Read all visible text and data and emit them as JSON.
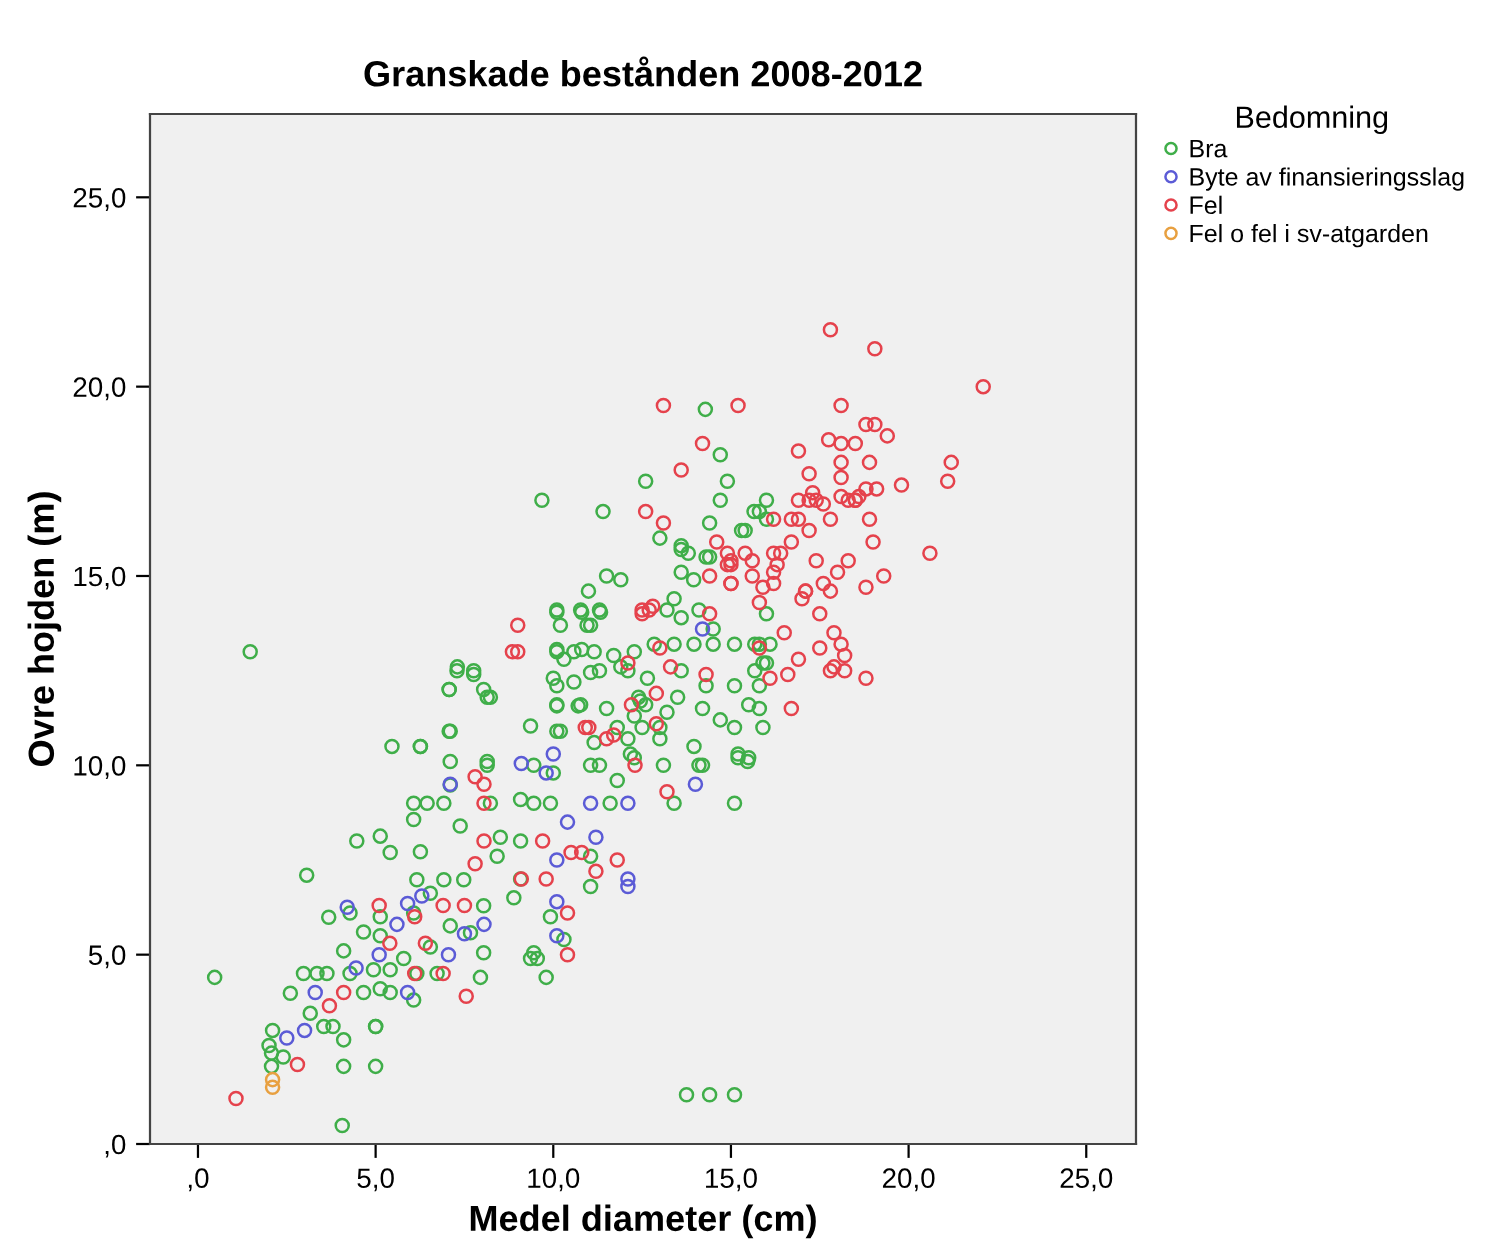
{
  "chart_data": {
    "type": "scatter",
    "title": "Granskade bestånden 2008-2012",
    "xlabel": "Medel diameter (cm)",
    "ylabel": "Ovre hojden (m)",
    "legend_title": "Bedomning",
    "legend": "right",
    "grid": false,
    "marker": "circle",
    "xlim": [
      -1.35,
      26.4
    ],
    "ylim": [
      0,
      27.2
    ],
    "xticks": [
      {
        "value": 0,
        "label": ",0"
      },
      {
        "value": 5,
        "label": "5,0"
      },
      {
        "value": 10,
        "label": "10,0"
      },
      {
        "value": 15,
        "label": "15,0"
      },
      {
        "value": 20,
        "label": "20,0"
      },
      {
        "value": 25,
        "label": "25,0"
      }
    ],
    "yticks": [
      {
        "value": 0,
        "label": ",0"
      },
      {
        "value": 5,
        "label": "5,0"
      },
      {
        "value": 10,
        "label": "10,0"
      },
      {
        "value": 15,
        "label": "15,0"
      },
      {
        "value": 20,
        "label": "20,0"
      },
      {
        "value": 25,
        "label": "25,0"
      }
    ],
    "series": [
      {
        "name": "Bra",
        "color": "#3fae49",
        "x": [
          1.47,
          0.47,
          4.06,
          2.07,
          2.07,
          2.1,
          2.0,
          2.4,
          2.6,
          2.97,
          3.35,
          3.63,
          3.16,
          3.54,
          3.8,
          4.1,
          4.1,
          5.0,
          5.0,
          3.06,
          3.68,
          4.28,
          4.66,
          4.94,
          4.1,
          4.28,
          4.66,
          5.41,
          5.79,
          6.16,
          6.54,
          4.47,
          5.13,
          5.41,
          6.26,
          6.07,
          6.07,
          6.45,
          6.92,
          7.1,
          7.1,
          7.38,
          5.46,
          6.26,
          7.07,
          7.07,
          7.29,
          7.76,
          8.04,
          8.23,
          8.14,
          8.23,
          8.51,
          8.42,
          9.08,
          9.45,
          9.92,
          9.08,
          9.08,
          8.89,
          6.92,
          7.48,
          7.1,
          7.67,
          8.04,
          6.16,
          6.54,
          6.07,
          6.73,
          6.07,
          5.13,
          5.13,
          5.13,
          5.0,
          5.41,
          7.95,
          8.04,
          9.45,
          9.36,
          9.8,
          9.36,
          10.1,
          10.1,
          10.1,
          10.3,
          10.1,
          10.8,
          11.05,
          10.7,
          11.05,
          10.1,
          10.8,
          11.33,
          11.05,
          11.8,
          11.6,
          12.17,
          11.8,
          12.45,
          11.05,
          11.05,
          9.92,
          10.3,
          9.55,
          13.75,
          14.4,
          15.1,
          14.28,
          14.7,
          12.6,
          14.9,
          14.7,
          9.68,
          11.4,
          16.0,
          15.65,
          15.3,
          14.4,
          13.6,
          13.0,
          13.8,
          14.3,
          13.6,
          13.95,
          13.4,
          11.5,
          11.9,
          10.99,
          10.1,
          10.2,
          10.77,
          11.3,
          10.95,
          10.1,
          10.58,
          11.15,
          11.7,
          12.28,
          12.84,
          13.4,
          13.96,
          14.5,
          15.1,
          15.67,
          16.1,
          10.0,
          10.58,
          11.3,
          12.1,
          12.65,
          13.6,
          14.3,
          15.1,
          15.67,
          16.0,
          10.1,
          10.77,
          11.5,
          12.28,
          13.2,
          14.2,
          14.7,
          15.5,
          15.9,
          10.2,
          11.15,
          12.1,
          13.0,
          13.96,
          15.1,
          15.2,
          15.47,
          6.26,
          7.1,
          8.14,
          7.3,
          7.76,
          7.07,
          9.45,
          10.0,
          11.3,
          12.28,
          14.2,
          8.14,
          12.6,
          13.5,
          13.2,
          13.6,
          14.1,
          14.5,
          11.9,
          12.4,
          13.0,
          13.6,
          14.4,
          15.4,
          15.8,
          16.0,
          16.0,
          15.8,
          15.9,
          15.8,
          15.8,
          15.2,
          15.5,
          15.1,
          14.1,
          13.4,
          13.1,
          12.5
        ],
        "values": [
          13.0,
          4.4,
          0.49,
          2.05,
          2.4,
          3.0,
          2.6,
          2.3,
          3.98,
          4.5,
          4.5,
          4.5,
          3.45,
          3.1,
          3.1,
          2.05,
          2.75,
          2.05,
          3.1,
          7.1,
          5.99,
          6.1,
          5.6,
          4.6,
          5.1,
          4.5,
          4.0,
          4.6,
          4.9,
          4.5,
          5.2,
          8.0,
          8.13,
          7.7,
          7.72,
          9.0,
          8.57,
          9.0,
          9.0,
          9.48,
          10.1,
          8.4,
          10.5,
          10.5,
          10.9,
          12.0,
          12.5,
          12.4,
          12.0,
          11.8,
          10.1,
          9.0,
          8.1,
          7.6,
          9.1,
          9.0,
          9.0,
          8.0,
          7.0,
          6.5,
          6.98,
          6.98,
          5.76,
          5.58,
          6.29,
          6.98,
          6.62,
          6.1,
          4.5,
          3.8,
          6.0,
          5.5,
          4.1,
          3.1,
          4.0,
          4.4,
          5.05,
          5.05,
          4.9,
          4.4,
          11.04,
          10.9,
          11.57,
          12.1,
          12.8,
          13.06,
          13.06,
          12.45,
          11.57,
          13.7,
          14.04,
          14.04,
          14.04,
          10.0,
          9.6,
          9.0,
          10.3,
          11.0,
          11.7,
          7.6,
          6.8,
          6.0,
          5.4,
          4.9,
          1.3,
          1.3,
          1.3,
          19.4,
          18.2,
          17.5,
          17.5,
          17.0,
          17.0,
          16.7,
          17.0,
          16.7,
          16.2,
          16.4,
          15.8,
          16.0,
          15.6,
          15.5,
          15.1,
          14.9,
          14.4,
          15.0,
          14.9,
          14.6,
          14.1,
          13.7,
          14.1,
          14.1,
          13.7,
          13.0,
          13.0,
          13.0,
          12.9,
          13.0,
          13.2,
          13.2,
          13.2,
          13.2,
          13.2,
          13.2,
          13.2,
          12.3,
          12.2,
          12.5,
          12.5,
          12.3,
          12.5,
          12.1,
          12.1,
          12.5,
          12.7,
          11.6,
          11.6,
          11.5,
          11.3,
          11.4,
          11.5,
          11.2,
          11.6,
          11.0,
          10.9,
          10.6,
          10.7,
          10.7,
          10.5,
          11.0,
          10.2,
          10.1,
          10.5,
          10.9,
          11.8,
          12.6,
          12.5,
          12.0,
          10.0,
          9.8,
          10.0,
          10.2,
          10.0,
          10.0,
          11.6,
          11.8,
          14.1,
          13.9,
          14.1,
          13.6,
          12.6,
          11.8,
          11.0,
          15.7,
          15.5,
          16.2,
          16.7,
          16.5,
          14.0,
          13.2,
          12.7,
          12.1,
          11.5,
          10.3,
          10.2,
          9.0,
          10.0,
          9.0,
          10.0,
          11.0
        ]
      },
      {
        "name": "Byte av finansieringsslag",
        "color": "#5b5bd6",
        "x": [
          4.2,
          2.5,
          3.0,
          3.3,
          4.45,
          5.6,
          5.9,
          6.3,
          5.1,
          5.9,
          7.05,
          7.5,
          8.05,
          7.1,
          9.1,
          10.0,
          9.8,
          10.4,
          10.1,
          10.1,
          10.1,
          11.05,
          11.2,
          12.1,
          12.1,
          12.1,
          14.2,
          14.0
        ],
        "values": [
          6.25,
          2.8,
          3.0,
          4.0,
          4.65,
          5.8,
          6.35,
          6.55,
          5.0,
          4.0,
          5.0,
          5.55,
          5.8,
          9.5,
          10.05,
          10.3,
          9.8,
          8.5,
          7.5,
          6.4,
          5.5,
          9.0,
          8.1,
          9.0,
          6.8,
          7.0,
          13.6,
          9.5
        ]
      },
      {
        "name": "Fel",
        "color": "#e5424c",
        "x": [
          17.8,
          19.05,
          22.1,
          13.1,
          15.2,
          18.1,
          18.8,
          19.05,
          19.4,
          14.2,
          17.75,
          18.1,
          18.5,
          16.9,
          13.6,
          18.1,
          18.9,
          21.2,
          21.1,
          19.8,
          17.3,
          17.2,
          18.1,
          18.1,
          18.8,
          19.1,
          12.6,
          13.1,
          16.9,
          17.2,
          17.4,
          18.3,
          18.5,
          16.2,
          16.7,
          16.9,
          17.6,
          17.8,
          18.5,
          18.6,
          18.9,
          19.0,
          16.7,
          17.2,
          16.3,
          17.4,
          18.3,
          14.6,
          15.0,
          15.6,
          20.6,
          14.4,
          15.0,
          15.6,
          16.2,
          18.0,
          19.3,
          18.8,
          17.0,
          17.1,
          17.6,
          17.8,
          15.9,
          15.8,
          17.5,
          16.5,
          17.9,
          18.1,
          18.2,
          17.5,
          16.9,
          17.9,
          18.2,
          17.8,
          18.8,
          16.6,
          16.1,
          16.7,
          12.7,
          12.5,
          14.4,
          14.9,
          15.0,
          9.0,
          8.85,
          9.0,
          7.8,
          8.05,
          8.05,
          8.05,
          7.8,
          9.1,
          9.8,
          10.9,
          11.0,
          10.5,
          10.8,
          11.2,
          11.8,
          9.7,
          10.4,
          10.4,
          6.9,
          7.5,
          5.1,
          6.1,
          5.4,
          6.4,
          6.9,
          7.55,
          6.1,
          4.1,
          3.7,
          2.8,
          1.07,
          11.5,
          11.7,
          12.3,
          13.2,
          13.0,
          13.3,
          14.3,
          15.8,
          12.9,
          12.1,
          12.2,
          12.9,
          12.5,
          12.8,
          15.0,
          14.9,
          15.4,
          16.2,
          16.4,
          17.1,
          16.2
        ],
        "values": [
          21.5,
          21.0,
          20.0,
          19.5,
          19.5,
          19.5,
          19.0,
          19.0,
          18.7,
          18.5,
          18.6,
          18.5,
          18.5,
          18.3,
          17.8,
          18.0,
          18.0,
          18.0,
          17.5,
          17.4,
          17.2,
          17.7,
          17.6,
          17.1,
          17.3,
          17.3,
          16.7,
          16.4,
          17.0,
          17.0,
          17.0,
          17.0,
          17.0,
          16.5,
          16.5,
          16.5,
          16.9,
          16.5,
          17.0,
          17.1,
          16.5,
          15.9,
          15.9,
          16.2,
          15.3,
          15.4,
          15.4,
          15.9,
          15.4,
          15.4,
          15.6,
          15.0,
          14.8,
          15.0,
          14.8,
          15.1,
          15.0,
          14.7,
          14.4,
          14.6,
          14.8,
          14.6,
          14.7,
          14.3,
          14.0,
          13.5,
          13.5,
          13.2,
          12.9,
          13.1,
          12.8,
          12.6,
          12.5,
          12.5,
          12.3,
          12.4,
          12.3,
          11.5,
          14.1,
          14.0,
          14.0,
          15.3,
          14.8,
          13.7,
          13.0,
          13.0,
          9.7,
          9.5,
          9.0,
          8.0,
          7.4,
          7.0,
          7.0,
          11.0,
          11.0,
          7.7,
          7.7,
          7.2,
          7.5,
          8.0,
          6.1,
          5.0,
          6.3,
          6.3,
          6.3,
          6.0,
          5.3,
          5.3,
          4.5,
          3.9,
          4.5,
          4.0,
          3.65,
          2.1,
          1.2,
          10.7,
          10.8,
          10.0,
          9.3,
          13.1,
          12.6,
          12.4,
          13.1,
          11.9,
          12.7,
          11.6,
          11.1,
          14.1,
          14.2,
          15.3,
          15.6,
          15.6,
          15.6,
          15.6,
          14.6,
          15.1
        ]
      },
      {
        "name": "Fel o fel i sv-atgarden",
        "color": "#e8a040",
        "x": [
          2.1,
          2.1
        ],
        "values": [
          1.5,
          1.7
        ]
      }
    ]
  }
}
